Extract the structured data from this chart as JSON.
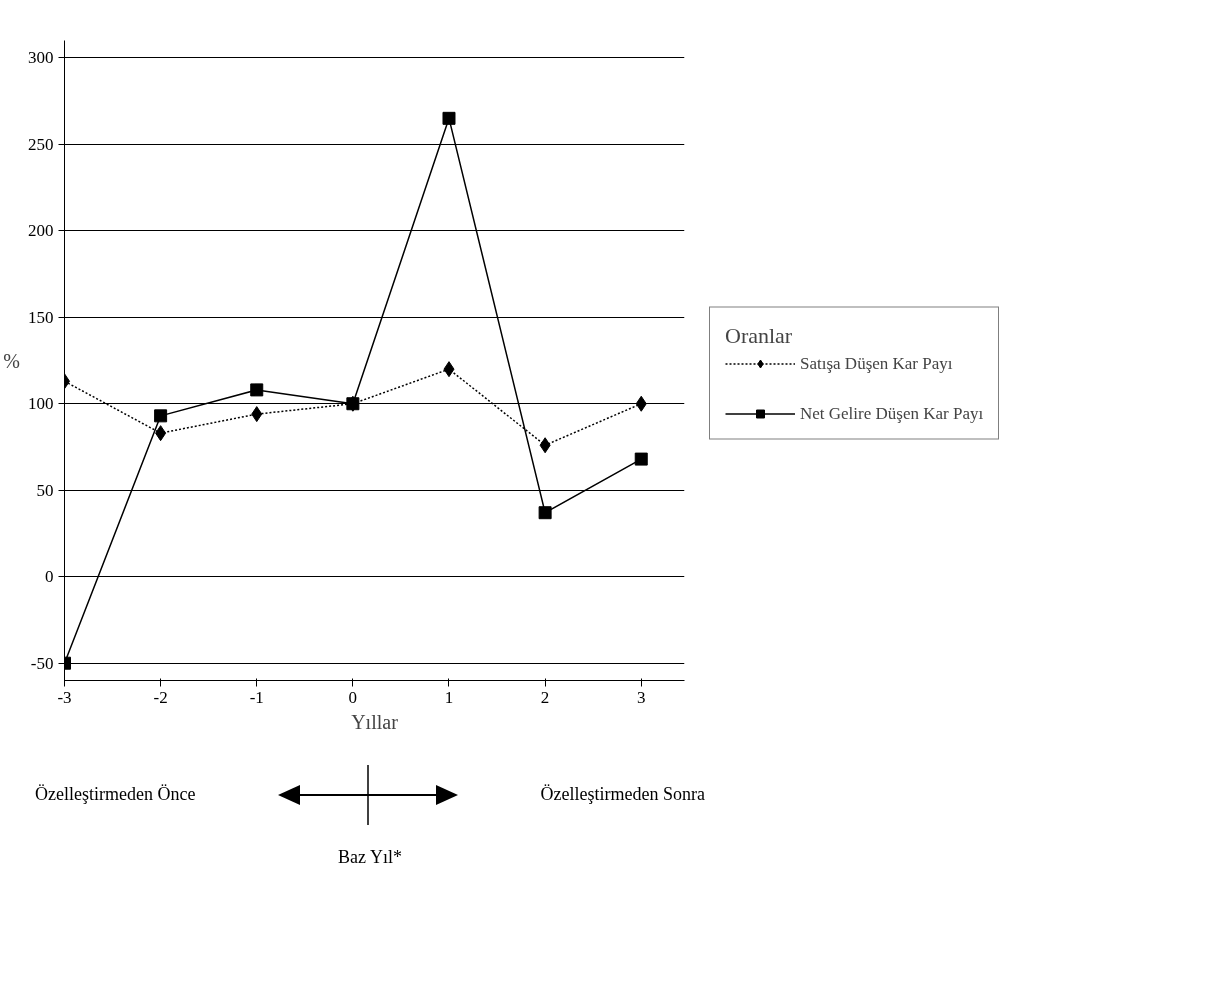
{
  "chart_data": {
    "type": "line",
    "ylabel": "%",
    "xlabel": "Yıllar",
    "legend_title": "Oranlar",
    "x": [
      -3,
      -2,
      -1,
      0,
      1,
      2,
      3
    ],
    "series": [
      {
        "name": "Satışa Düşen Kar Payı",
        "color": "#000000",
        "marker": "diamond",
        "line_style": "dotted",
        "values": [
          113,
          83,
          94,
          100,
          120,
          76,
          100
        ]
      },
      {
        "name": "Net Gelire Düşen Kar Payı",
        "color": "#000000",
        "marker": "square",
        "line_style": "solid",
        "values": [
          -50,
          93,
          108,
          100,
          265,
          37,
          68
        ]
      }
    ],
    "xlim": [
      -3,
      3.45
    ],
    "ylim": [
      -60,
      310
    ],
    "xticks": [
      -3,
      -2,
      -1,
      0,
      1,
      2,
      3
    ],
    "yticks": [
      -50,
      0,
      50,
      100,
      150,
      200,
      250,
      300
    ],
    "grid": "y",
    "legend": "right",
    "annotations": [
      "Özelleştirmeden Önce",
      "Özelleştirmeden Sonra",
      "Baz Yıl*"
    ]
  }
}
